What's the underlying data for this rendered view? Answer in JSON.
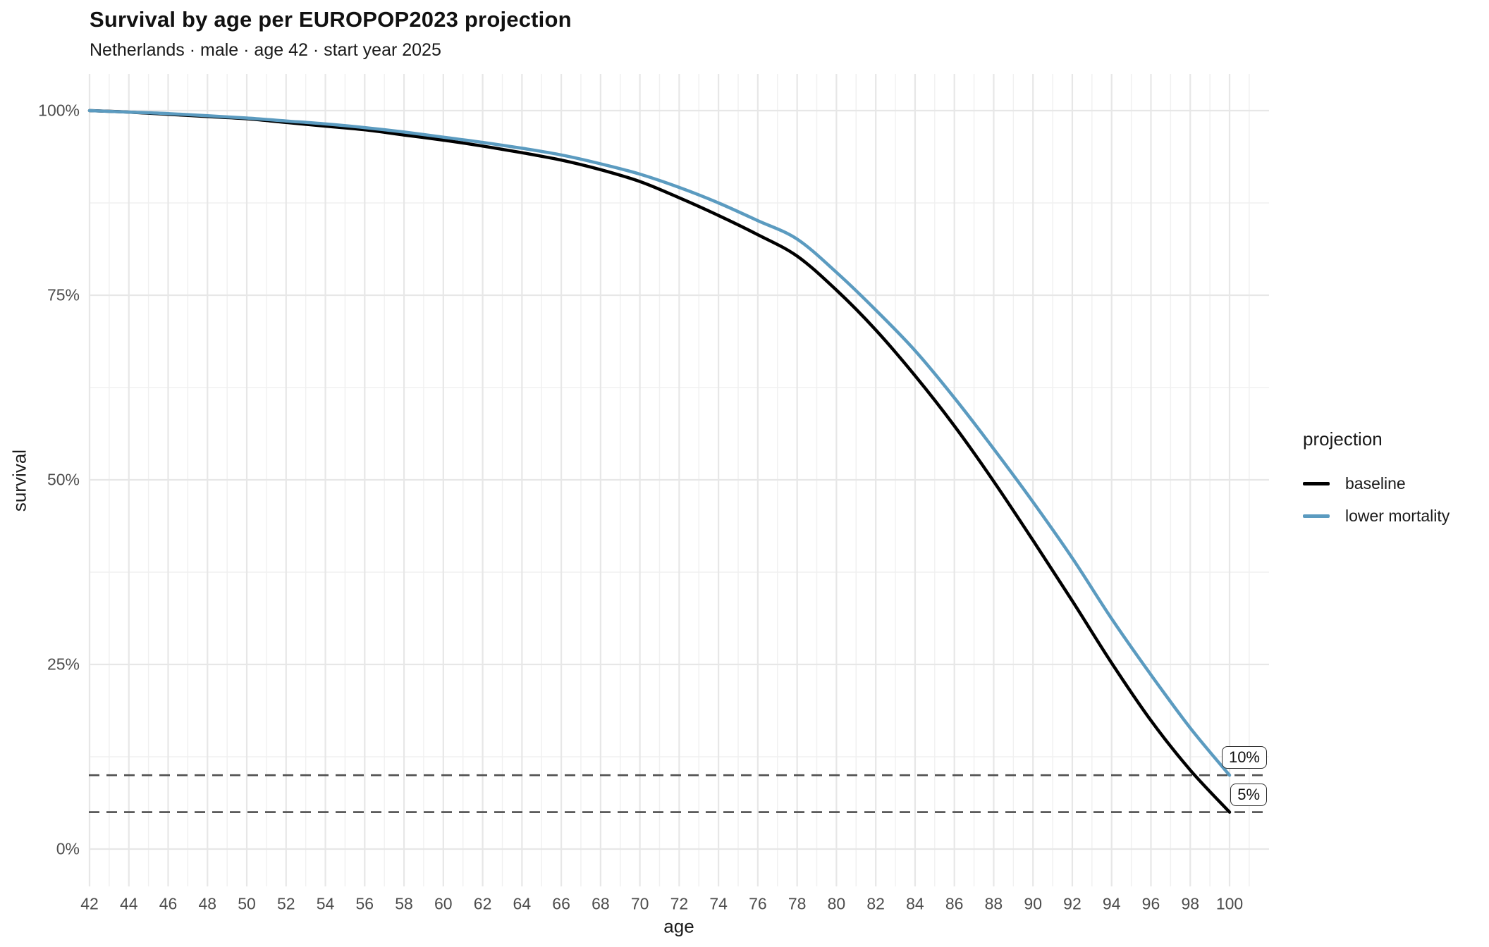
{
  "title": "Survival by age per EUROPOP2023 projection",
  "subtitle": "Netherlands · male · age 42 · start year 2025",
  "chart_data": {
    "type": "line",
    "title": "Survival by age per EUROPOP2023 projection",
    "subtitle": "Netherlands · male · age 42 · start year 2025",
    "xlabel": "age",
    "ylabel": "survival",
    "xlim": [
      42,
      100
    ],
    "ylim": [
      0,
      100
    ],
    "grid": "white background, light gray major gridlines every 2 years / 25%, lighter minors between",
    "legend_position": "right",
    "legend_title": "projection",
    "x": [
      42,
      44,
      46,
      48,
      50,
      52,
      54,
      56,
      58,
      60,
      62,
      64,
      66,
      68,
      70,
      72,
      74,
      76,
      78,
      80,
      82,
      84,
      86,
      88,
      90,
      92,
      94,
      96,
      98,
      100
    ],
    "x_tick_labels": [
      "42",
      "44",
      "46",
      "48",
      "50",
      "52",
      "54",
      "56",
      "58",
      "60",
      "62",
      "64",
      "66",
      "68",
      "70",
      "72",
      "74",
      "76",
      "78",
      "80",
      "82",
      "84",
      "86",
      "88",
      "90",
      "92",
      "94",
      "96",
      "98",
      "100"
    ],
    "y_tick_values": [
      0,
      25,
      50,
      75,
      100
    ],
    "y_tick_labels": [
      "0%",
      "25%",
      "50%",
      "75%",
      "100%"
    ],
    "series": [
      {
        "name": "baseline",
        "color": "#000000",
        "values": [
          100,
          99.8,
          99.5,
          99.2,
          98.9,
          98.4,
          97.9,
          97.4,
          96.7,
          96.0,
          95.2,
          94.3,
          93.3,
          92.0,
          90.4,
          88.2,
          85.8,
          83.2,
          80.3,
          75.7,
          70.3,
          64.1,
          57.3,
          49.8,
          41.8,
          33.6,
          25.2,
          17.4,
          10.7,
          5.0
        ]
      },
      {
        "name": "lower mortality",
        "color": "#5B9BC0",
        "values": [
          100,
          99.8,
          99.6,
          99.3,
          99.0,
          98.6,
          98.2,
          97.7,
          97.1,
          96.4,
          95.7,
          94.9,
          94.0,
          92.8,
          91.4,
          89.6,
          87.5,
          85.1,
          82.6,
          78.1,
          73.0,
          67.5,
          61.1,
          54.2,
          47.0,
          39.4,
          31.2,
          23.6,
          16.4,
          10.0
        ]
      }
    ],
    "reference_lines": [
      {
        "value": 10,
        "label": "10%"
      },
      {
        "value": 5,
        "label": "5%"
      }
    ]
  }
}
